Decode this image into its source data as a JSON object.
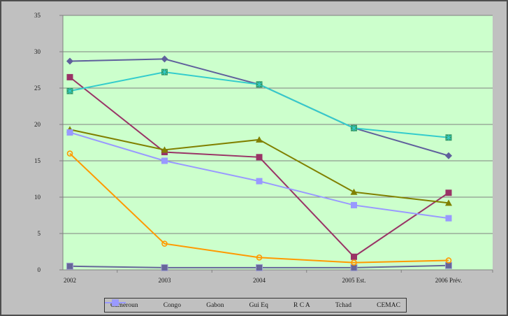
{
  "chart_data": {
    "type": "line",
    "title": "",
    "xlabel": "",
    "ylabel": "",
    "categories": [
      "2002",
      "2003",
      "2004",
      "2005 Est.",
      "2006 Prév."
    ],
    "y_ticks": [
      0,
      5,
      10,
      15,
      20,
      25,
      30,
      35
    ],
    "ylim": [
      0,
      35
    ],
    "grid": true,
    "legend_position": "bottom",
    "plot_bg_color": "#CCFFCC",
    "outer_bg_color": "#C0C0C0",
    "gridline_color": "#808080",
    "series": [
      {
        "name": "Cameroun",
        "values": [
          28.7,
          29.0,
          25.5,
          19.5,
          15.7
        ],
        "color": "#5F5F9C",
        "marker": "diamond"
      },
      {
        "name": "Congo",
        "values": [
          26.5,
          16.2,
          15.5,
          1.8,
          10.6
        ],
        "color": "#993366",
        "marker": "square"
      },
      {
        "name": "Gabon",
        "values": [
          19.3,
          16.5,
          17.9,
          10.7,
          9.2
        ],
        "color": "#808000",
        "marker": "triangle"
      },
      {
        "name": "Gui Eq",
        "values": [
          0.5,
          0.3,
          0.3,
          0.3,
          0.6
        ],
        "color": "#666699",
        "marker": "square",
        "marker_stroke": "#9f9fd0"
      },
      {
        "name": "R C A",
        "values": [
          24.6,
          27.2,
          25.5,
          19.5,
          18.2
        ],
        "color": "#33CCCC",
        "marker": "star-square",
        "marker_color": "#339966"
      },
      {
        "name": "Tchad",
        "values": [
          16.0,
          3.6,
          1.7,
          1.0,
          1.3
        ],
        "color": "#FF9900",
        "marker": "circle-open"
      },
      {
        "name": "CEMAC",
        "values": [
          18.9,
          15.0,
          12.2,
          8.9,
          7.1
        ],
        "color": "#9999FF",
        "marker": "square"
      }
    ]
  }
}
